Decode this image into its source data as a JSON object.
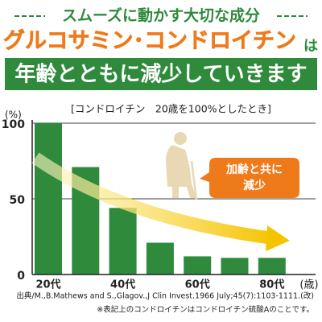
{
  "chart_data": {
    "type": "bar",
    "heading": "スムーズに動かす大切な成分",
    "title": "グルコサミン･コンドロイチン",
    "title_suffix": "は",
    "subtitle": "年齢とともに減少していきます",
    "note": "[コンドロイチン　20歳を100%としたとき]",
    "y_label": "(%)",
    "x_label": "(歳)",
    "annotation": [
      "加齢と共に",
      "減少"
    ],
    "footnotes": [
      "出典/M.,B.Mathews and S.,Glagov.,J Clin Invest.1966 July;45(7):1103-1111.(改)",
      "※表記上のコンドロイチンはコンドロイチン硫酸Aのことです。"
    ],
    "categories": [
      "20代",
      null,
      "40代",
      null,
      "60代",
      null,
      "80代"
    ],
    "values": [
      100,
      71,
      44,
      21,
      12,
      11,
      11
    ],
    "color": "#2f8a3c",
    "ylim": [
      0,
      100
    ],
    "yticks": [
      0,
      50,
      100
    ],
    "grid": true
  }
}
